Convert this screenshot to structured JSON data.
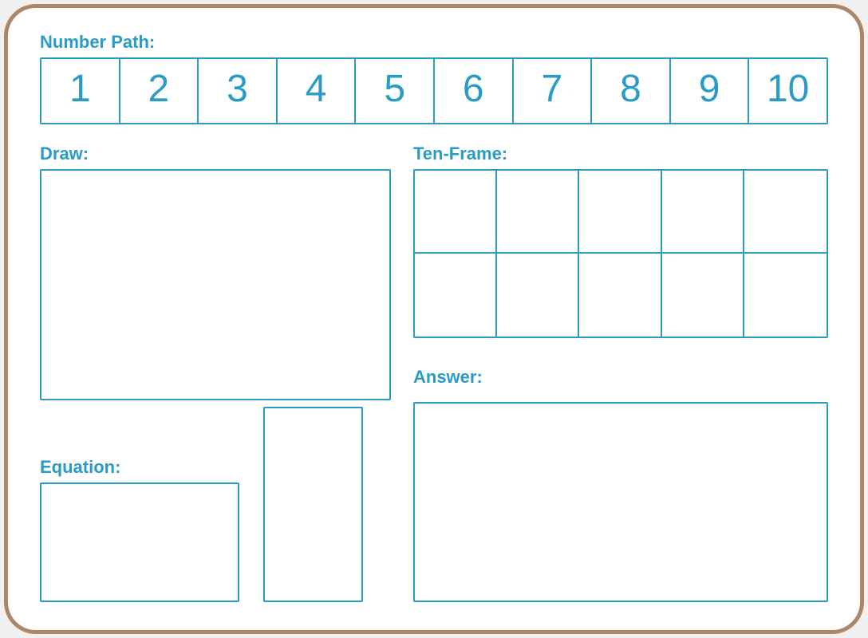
{
  "colors": {
    "accent": "#2a9bc4",
    "board_bg": "#ffffff",
    "board_border": "#aa8866"
  },
  "typography": {
    "label_fontsize": 22,
    "number_fontsize": 48,
    "font_family": "Comic Sans MS"
  },
  "number_path": {
    "label": "Number Path:",
    "values": [
      "1",
      "2",
      "3",
      "4",
      "5",
      "6",
      "7",
      "8",
      "9",
      "10"
    ]
  },
  "draw": {
    "label": "Draw:"
  },
  "equation": {
    "label": "Equation:"
  },
  "ten_frame": {
    "label": "Ten-Frame:",
    "rows": 2,
    "cols": 5
  },
  "answer": {
    "label": "Answer:"
  },
  "layout": {
    "board_width": 1078,
    "board_height": 790,
    "border_radius": 40,
    "line_width": 2
  }
}
